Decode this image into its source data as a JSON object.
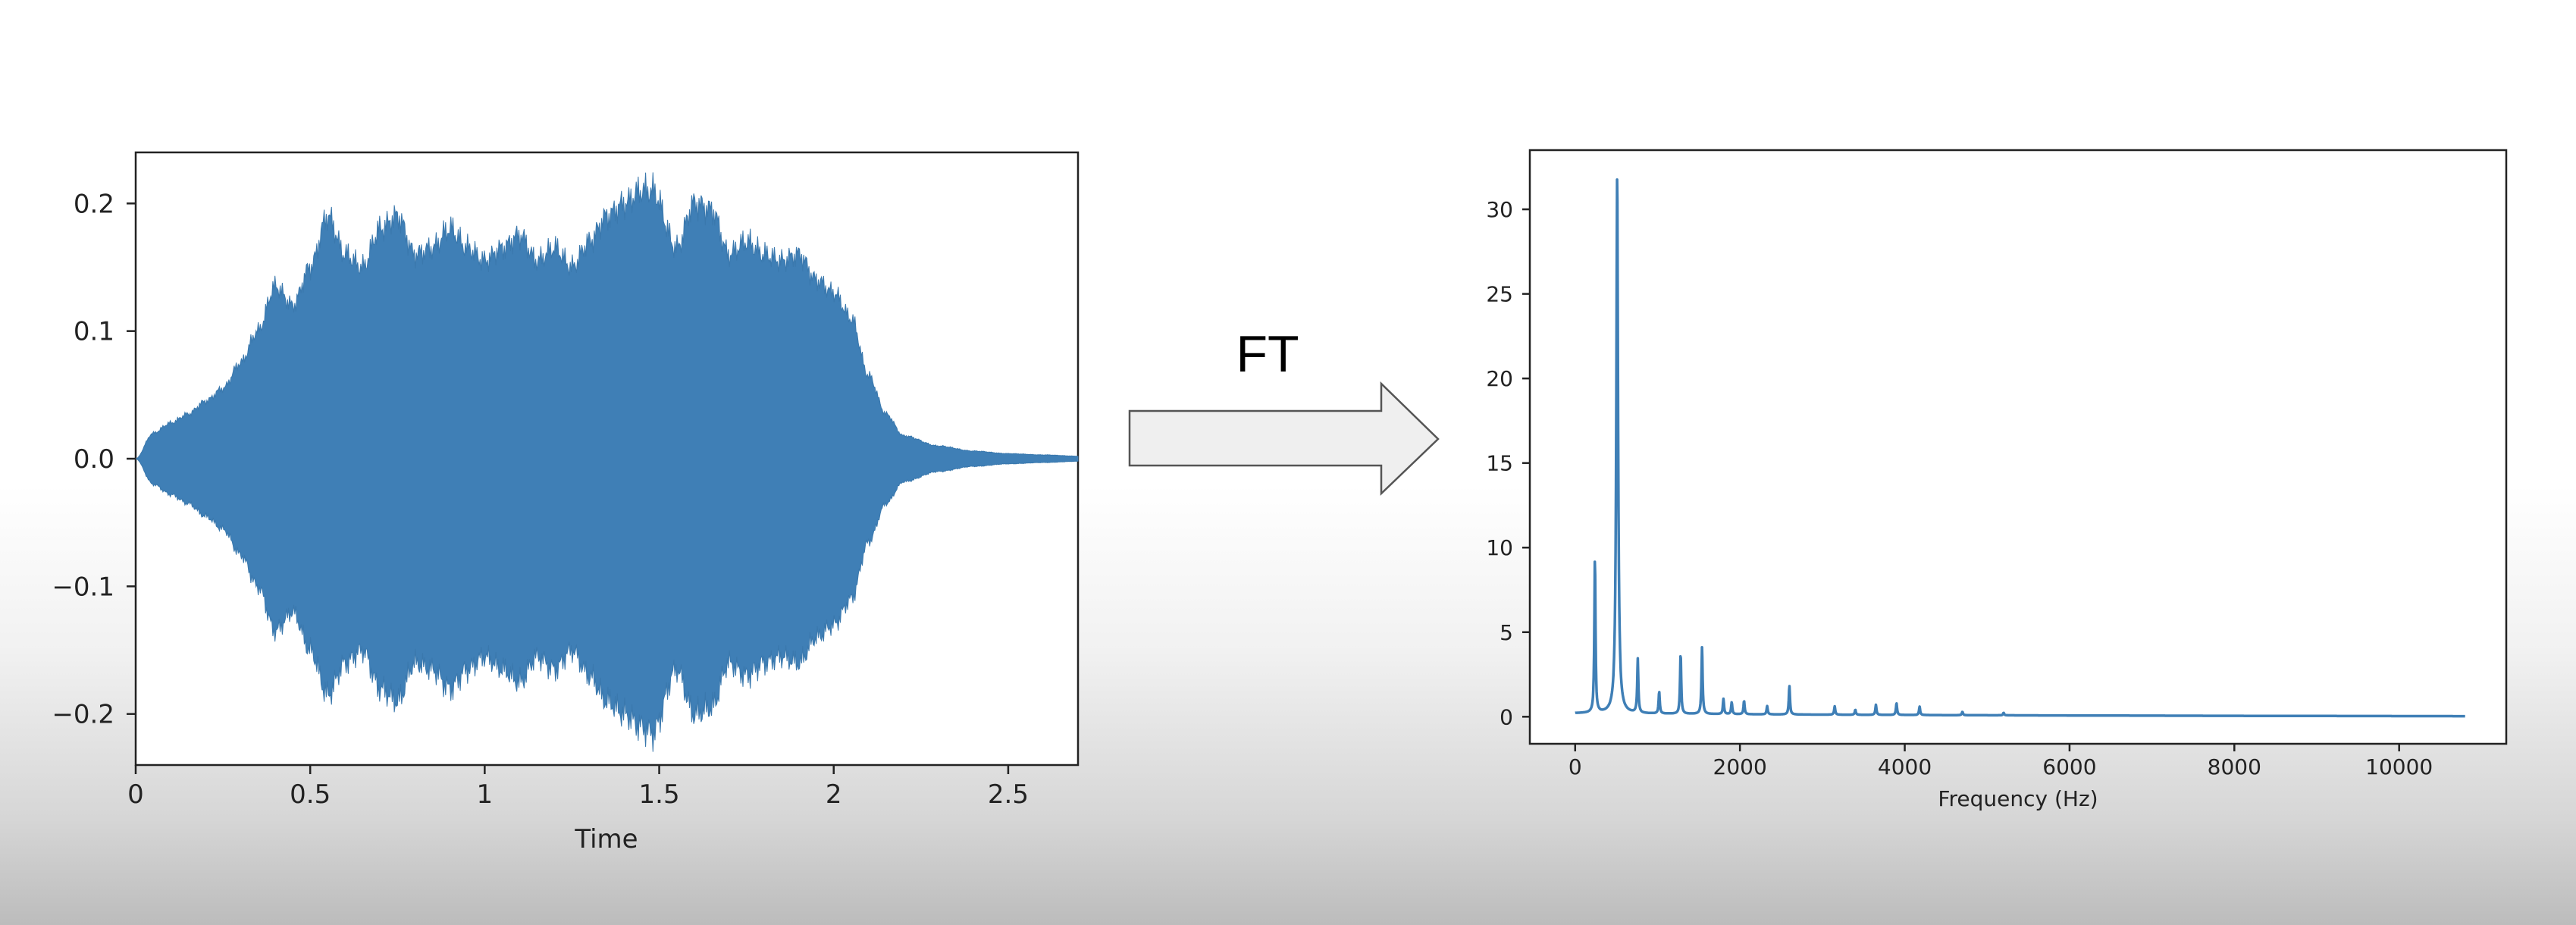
{
  "arrow_label": "FT",
  "colors": {
    "series": "#3f7fb6",
    "arrow_fill": "#efefef",
    "arrow_stroke": "#555555",
    "axis": "#222222"
  },
  "chart_data": [
    {
      "type": "area",
      "title": "",
      "xlabel": "Time",
      "ylabel": "",
      "xlim": [
        0,
        2.7
      ],
      "ylim": [
        -0.24,
        0.24
      ],
      "x_ticks": [
        0,
        0.5,
        1,
        1.5,
        2,
        2.5
      ],
      "x_tick_labels": [
        "0",
        "0.5",
        "1",
        "1.5",
        "2",
        "2.5"
      ],
      "y_ticks": [
        0.2,
        0.1,
        0.0,
        -0.1,
        -0.2
      ],
      "y_tick_labels": [
        "0.2",
        "0.1",
        "0.0",
        "−0.1",
        "−0.2"
      ],
      "grid": false,
      "envelope": {
        "x": [
          0,
          0.05,
          0.1,
          0.15,
          0.2,
          0.25,
          0.3,
          0.35,
          0.4,
          0.45,
          0.5,
          0.55,
          0.6,
          0.65,
          0.7,
          0.75,
          0.8,
          0.85,
          0.9,
          0.95,
          1.0,
          1.05,
          1.1,
          1.15,
          1.2,
          1.25,
          1.3,
          1.35,
          1.4,
          1.45,
          1.48,
          1.55,
          1.6,
          1.65,
          1.7,
          1.75,
          1.8,
          1.85,
          1.9,
          1.95,
          2.0,
          2.05,
          2.1,
          2.15,
          2.2,
          2.3,
          2.4,
          2.5,
          2.6,
          2.7
        ],
        "upper": [
          0.0,
          0.02,
          0.028,
          0.035,
          0.045,
          0.055,
          0.075,
          0.1,
          0.135,
          0.12,
          0.15,
          0.19,
          0.16,
          0.15,
          0.18,
          0.19,
          0.16,
          0.165,
          0.18,
          0.165,
          0.155,
          0.165,
          0.175,
          0.155,
          0.165,
          0.15,
          0.17,
          0.19,
          0.2,
          0.21,
          0.21,
          0.165,
          0.2,
          0.195,
          0.16,
          0.17,
          0.16,
          0.155,
          0.16,
          0.14,
          0.13,
          0.11,
          0.065,
          0.035,
          0.018,
          0.01,
          0.006,
          0.004,
          0.003,
          0.002
        ],
        "lower": [
          0.0,
          -0.02,
          -0.028,
          -0.035,
          -0.045,
          -0.055,
          -0.075,
          -0.1,
          -0.135,
          -0.12,
          -0.15,
          -0.185,
          -0.16,
          -0.15,
          -0.18,
          -0.19,
          -0.16,
          -0.165,
          -0.18,
          -0.165,
          -0.155,
          -0.165,
          -0.175,
          -0.155,
          -0.165,
          -0.15,
          -0.17,
          -0.19,
          -0.2,
          -0.21,
          -0.215,
          -0.165,
          -0.2,
          -0.195,
          -0.16,
          -0.17,
          -0.16,
          -0.155,
          -0.16,
          -0.14,
          -0.13,
          -0.11,
          -0.065,
          -0.035,
          -0.018,
          -0.01,
          -0.006,
          -0.004,
          -0.003,
          -0.002
        ]
      }
    },
    {
      "type": "line",
      "title": "",
      "xlabel": "Frequency (Hz)",
      "ylabel": "",
      "xlim": [
        -550,
        11300
      ],
      "ylim": [
        -1.6,
        33.5
      ],
      "x_ticks": [
        0,
        2000,
        4000,
        6000,
        8000,
        10000
      ],
      "x_tick_labels": [
        "0",
        "2000",
        "4000",
        "6000",
        "8000",
        "10000"
      ],
      "y_ticks": [
        30,
        25,
        20,
        15,
        10,
        5,
        0
      ],
      "y_tick_labels": [
        "30",
        "25",
        "20",
        "15",
        "10",
        "5",
        "0"
      ],
      "grid": false,
      "x_range": [
        0,
        10800
      ],
      "baseline": 0.2,
      "peaks": [
        {
          "x": 240,
          "y": 9.2
        },
        {
          "x": 510,
          "y": 32
        },
        {
          "x": 760,
          "y": 3.2
        },
        {
          "x": 1020,
          "y": 1.3
        },
        {
          "x": 1280,
          "y": 3.6
        },
        {
          "x": 1540,
          "y": 4.0
        },
        {
          "x": 1800,
          "y": 0.9
        },
        {
          "x": 1900,
          "y": 0.7
        },
        {
          "x": 2050,
          "y": 0.8
        },
        {
          "x": 2330,
          "y": 0.5
        },
        {
          "x": 2600,
          "y": 1.7
        },
        {
          "x": 3150,
          "y": 0.5
        },
        {
          "x": 3400,
          "y": 0.3
        },
        {
          "x": 3650,
          "y": 0.6
        },
        {
          "x": 3900,
          "y": 0.7
        },
        {
          "x": 4180,
          "y": 0.5
        },
        {
          "x": 4700,
          "y": 0.2
        },
        {
          "x": 5200,
          "y": 0.15
        }
      ]
    }
  ]
}
